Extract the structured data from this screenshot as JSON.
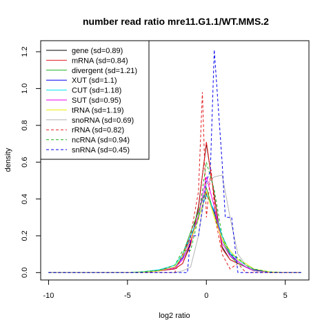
{
  "chart_data": {
    "type": "line",
    "title": "number read ratio mre11.G1.1/WT.MMS.2",
    "xlabel": "log2 ratio",
    "ylabel": "density",
    "xlim": [
      -10.5,
      6.5
    ],
    "ylim": [
      -0.04,
      1.26
    ],
    "xticks": [
      -10,
      -5,
      0,
      5
    ],
    "yticks": [
      0.0,
      0.2,
      0.4,
      0.6,
      0.8,
      1.0,
      1.2
    ],
    "legend_position": "top-left",
    "grid": false,
    "series": [
      {
        "name": "gene (sd=0.89)",
        "color": "#000000",
        "dash": "solid",
        "x": [
          -10,
          -5,
          -4,
          -3,
          -2,
          -1.5,
          -1,
          -0.5,
          0,
          0.5,
          1,
          1.5,
          2,
          2.5,
          3,
          4,
          5,
          6
        ],
        "y": [
          0,
          0,
          0.002,
          0.01,
          0.02,
          0.05,
          0.16,
          0.36,
          0.7,
          0.42,
          0.14,
          0.07,
          0.05,
          0.03,
          0.01,
          0.002,
          0,
          0
        ]
      },
      {
        "name": "mRNA (sd=0.84)",
        "color": "#e31a1c",
        "dash": "solid",
        "x": [
          -10,
          -5,
          -4,
          -3,
          -2,
          -1.5,
          -1,
          -0.5,
          0,
          0.5,
          1,
          1.5,
          2,
          2.5,
          3,
          4,
          5,
          6
        ],
        "y": [
          0,
          0,
          0.002,
          0.01,
          0.02,
          0.05,
          0.15,
          0.35,
          0.71,
          0.41,
          0.13,
          0.07,
          0.05,
          0.03,
          0.01,
          0.002,
          0,
          0
        ]
      },
      {
        "name": "divergent (sd=1.21)",
        "color": "#1db01d",
        "dash": "solid",
        "x": [
          -10,
          -5,
          -4,
          -3,
          -2,
          -1.5,
          -1,
          -0.5,
          0,
          0.5,
          1,
          1.5,
          2,
          2.5,
          3,
          4,
          5,
          6
        ],
        "y": [
          0,
          0,
          0.005,
          0.015,
          0.04,
          0.1,
          0.22,
          0.33,
          0.46,
          0.32,
          0.18,
          0.09,
          0.05,
          0.03,
          0.015,
          0.003,
          0,
          0
        ]
      },
      {
        "name": "XUT (sd=1.1)",
        "color": "#0000ee",
        "dash": "solid",
        "x": [
          -10,
          -5,
          -4,
          -3,
          -2,
          -1.5,
          -1,
          -0.5,
          0,
          0.5,
          1,
          1.5,
          2,
          2.5,
          3,
          4,
          5,
          6
        ],
        "y": [
          0,
          0,
          0.003,
          0.012,
          0.03,
          0.08,
          0.2,
          0.3,
          0.43,
          0.33,
          0.2,
          0.1,
          0.06,
          0.03,
          0.015,
          0.003,
          0,
          0
        ]
      },
      {
        "name": "CUT (sd=1.18)",
        "color": "#00e5ee",
        "dash": "solid",
        "x": [
          -10,
          -5,
          -4,
          -3,
          -2,
          -1.5,
          -1,
          -0.5,
          0,
          0.5,
          1,
          1.5,
          2,
          2.5,
          3,
          4,
          5,
          6
        ],
        "y": [
          0,
          0,
          0.005,
          0.015,
          0.04,
          0.1,
          0.2,
          0.3,
          0.42,
          0.34,
          0.2,
          0.11,
          0.07,
          0.04,
          0.02,
          0.004,
          0,
          0
        ]
      },
      {
        "name": "SUT (sd=0.95)",
        "color": "#ee00ee",
        "dash": "solid",
        "x": [
          -10,
          -5,
          -4,
          -3,
          -2,
          -1.5,
          -1,
          -0.5,
          0,
          0.5,
          1,
          1.5,
          2,
          2.5,
          3,
          4,
          5,
          6
        ],
        "y": [
          0,
          0,
          0.002,
          0.01,
          0.025,
          0.07,
          0.17,
          0.31,
          0.52,
          0.36,
          0.16,
          0.09,
          0.06,
          0.03,
          0.01,
          0.002,
          0,
          0
        ]
      },
      {
        "name": "tRNA (sd=1.19)",
        "color": "#eeee00",
        "dash": "solid",
        "x": [
          -10,
          -5,
          -4,
          -3,
          -2,
          -1.5,
          -1,
          -0.5,
          0,
          0.5,
          1,
          1.5,
          2,
          2.5,
          3,
          4,
          5,
          6
        ],
        "y": [
          0,
          0,
          0.003,
          0.01,
          0.03,
          0.09,
          0.18,
          0.29,
          0.44,
          0.3,
          0.18,
          0.12,
          0.07,
          0.05,
          0.02,
          0.004,
          0,
          0
        ]
      },
      {
        "name": "snoRNA (sd=0.69)",
        "color": "#b3b3b3",
        "dash": "solid",
        "x": [
          -10,
          -2,
          -1.5,
          -1,
          -0.5,
          0,
          0.5,
          1,
          1.5,
          2,
          2.5,
          3,
          4,
          6
        ],
        "y": [
          0,
          0,
          0.01,
          0.03,
          0.2,
          0.48,
          0.52,
          0.53,
          0.3,
          0.1,
          0.04,
          0.01,
          0,
          0
        ]
      },
      {
        "name": "rRNA (sd=0.82)",
        "color": "#e31a1c",
        "dash": "dashed",
        "x": [
          -10,
          -2,
          -1.5,
          -1,
          -0.5,
          -0.25,
          0,
          0.3,
          0.6,
          1,
          1.5,
          2,
          2.5,
          6
        ],
        "y": [
          0,
          0,
          0.1,
          0.2,
          0.44,
          0.98,
          0.3,
          0.56,
          0.28,
          0.1,
          0.02,
          0.05,
          0,
          0
        ]
      },
      {
        "name": "ncRNA (sd=0.94)",
        "color": "#1db01d",
        "dash": "dashed",
        "x": [
          -10,
          -5,
          -4,
          -3,
          -2,
          -1.5,
          -1,
          -0.5,
          0,
          0.5,
          1,
          1.5,
          2,
          2.5,
          3,
          4,
          5,
          6
        ],
        "y": [
          0,
          0,
          0.004,
          0.012,
          0.04,
          0.12,
          0.12,
          0.3,
          0.6,
          0.45,
          0.2,
          0.1,
          0.08,
          0.04,
          0.02,
          0.004,
          0,
          0
        ]
      },
      {
        "name": "snRNA (sd=0.45)",
        "color": "#0000ee",
        "dash": "dashed",
        "x": [
          -10,
          -1.2,
          -1,
          -0.5,
          0,
          0.25,
          0.5,
          1,
          1.2,
          1.6,
          2,
          2.5,
          6
        ],
        "y": [
          0,
          0,
          0.2,
          0.2,
          0.5,
          0.55,
          1.21,
          0.6,
          0.3,
          0.3,
          0.0,
          0,
          0
        ]
      }
    ]
  }
}
